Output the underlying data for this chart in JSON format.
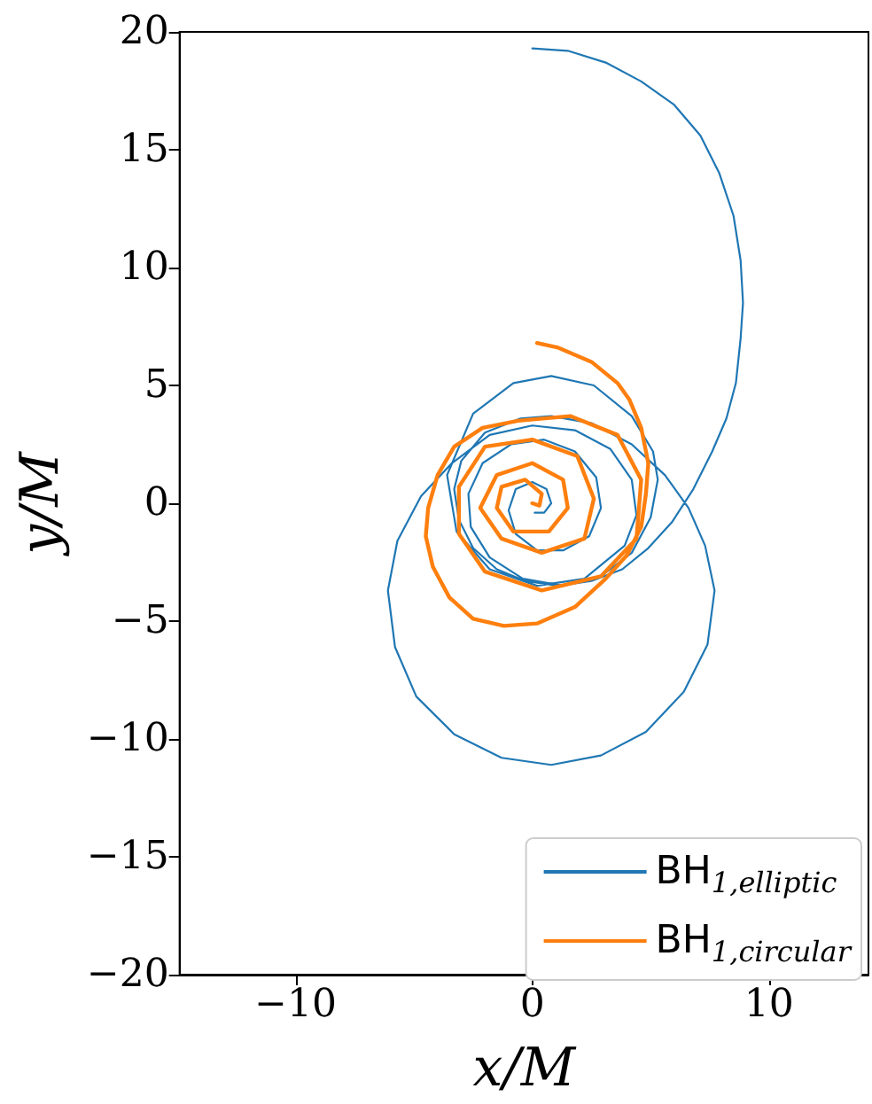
{
  "chart_data": {
    "type": "line",
    "xlabel": "x/M",
    "ylabel": "y/M",
    "xlim": [
      -14.9,
      14.2
    ],
    "xticks": [
      -10,
      0,
      10
    ],
    "ylim": [
      -20,
      20
    ],
    "yticks": [
      -20,
      -15,
      -10,
      -5,
      0,
      5,
      10,
      15,
      20
    ],
    "grid": false,
    "legend": "bottom right",
    "marker": "none",
    "line_style": "solid",
    "series": [
      {
        "name": "BH$_{1,elliptic}$",
        "color": "#1f77b4",
        "x": [
          0,
          1.5,
          3.1,
          4.6,
          6.0,
          7.1,
          7.9,
          8.5,
          8.8,
          8.9,
          8.8,
          8.6,
          8.2,
          7.6,
          6.8,
          5.9,
          4.9,
          3.8,
          2.5,
          1.1,
          -0.3,
          -1.5,
          -2.5,
          -3.1,
          -3.3,
          -3.0,
          -2.0,
          -0.5,
          0.8,
          2.5,
          4.2,
          5.6,
          6.6,
          7.3,
          7.7,
          7.4,
          6.4,
          4.8,
          2.9,
          0.8,
          -1.3,
          -3.3,
          -4.9,
          -5.8,
          -6.1,
          -5.7,
          -4.7,
          -3.4,
          -1.8,
          0,
          1.8,
          3.3,
          4.2,
          4.4,
          3.9,
          2.2,
          0.2,
          -1.8,
          -3.2,
          -3.6,
          -2.5,
          -0.8,
          0.8,
          2.6,
          4.2,
          5.1,
          5.3,
          5.0,
          4.2,
          2.9,
          1.3,
          -0.4,
          -1.8,
          -2.6,
          -2.7,
          -2.1,
          -0.9,
          0.5,
          1.8,
          2.7,
          2.9,
          2.4,
          1.3,
          0.2,
          -0.7,
          -1.0,
          -0.7,
          0,
          0.6,
          0.8,
          0.5,
          0.1
        ],
        "values": [
          19.3,
          19.2,
          18.7,
          17.9,
          16.9,
          15.6,
          14.0,
          12.2,
          10.3,
          8.5,
          7.0,
          5.1,
          3.6,
          2.2,
          0.6,
          -0.8,
          -1.9,
          -2.8,
          -3.3,
          -3.5,
          -3.3,
          -2.8,
          -1.9,
          -0.7,
          0.6,
          1.8,
          3.0,
          3.6,
          3.7,
          3.4,
          2.5,
          1.2,
          -0.2,
          -1.8,
          -3.7,
          -6.0,
          -8.0,
          -9.7,
          -10.7,
          -11.1,
          -10.8,
          -9.8,
          -8.2,
          -6.1,
          -3.7,
          -1.6,
          0.3,
          1.7,
          2.9,
          3.3,
          3.1,
          2.3,
          1.0,
          -0.5,
          -1.8,
          -3.2,
          -3.5,
          -2.8,
          -1.2,
          1.2,
          3.8,
          5.1,
          5.4,
          5.0,
          3.7,
          2.2,
          1.0,
          -0.6,
          -2.1,
          -3.1,
          -3.5,
          -3.2,
          -2.3,
          -1.0,
          0.4,
          1.7,
          2.5,
          2.7,
          2.2,
          1.1,
          -0.2,
          -1.4,
          -2.0,
          -2.0,
          -1.3,
          -0.3,
          0.6,
          0.9,
          0.6,
          0,
          -0.4,
          -0.4
        ]
      },
      {
        "name": "BH$_{1,circular}$",
        "color": "#ff7f0e",
        "x": [
          0.2,
          1.1,
          2.5,
          3.6,
          4.1,
          4.6,
          4.9,
          4.8,
          4.6,
          4.0,
          3.1,
          1.8,
          0.2,
          -1.2,
          -2.5,
          -3.5,
          -4.2,
          -4.5,
          -4.4,
          -4.0,
          -3.3,
          -2.1,
          -0.6,
          1.6,
          3.6,
          4.6,
          4.4,
          2.9,
          0.4,
          -2.0,
          -3.1,
          -3.1,
          -2.0,
          0,
          1.9,
          2.6,
          2.2,
          0.4,
          -1.3,
          -2.2,
          -1.5,
          0,
          1.3,
          1.5,
          0.7,
          -0.8,
          -1.5,
          -1.3,
          -0.3,
          0.4,
          0.3,
          0
        ],
        "values": [
          6.8,
          6.6,
          6.0,
          5.1,
          4.4,
          3.2,
          1.7,
          0.4,
          -1.0,
          -2.2,
          -3.2,
          -4.4,
          -5.1,
          -5.2,
          -4.9,
          -4.0,
          -2.7,
          -1.4,
          -0.2,
          1.2,
          2.4,
          3.2,
          3.5,
          3.7,
          2.9,
          1.0,
          -1.5,
          -3.1,
          -3.7,
          -2.9,
          -1.3,
          0.7,
          2.4,
          2.7,
          2.0,
          0.2,
          -1.5,
          -2.1,
          -1.5,
          -0.2,
          1.2,
          1.7,
          1.0,
          -0.2,
          -1.2,
          -1.2,
          -0.2,
          0.7,
          1.0,
          0.4,
          -0.1,
          0
        ]
      }
    ]
  }
}
